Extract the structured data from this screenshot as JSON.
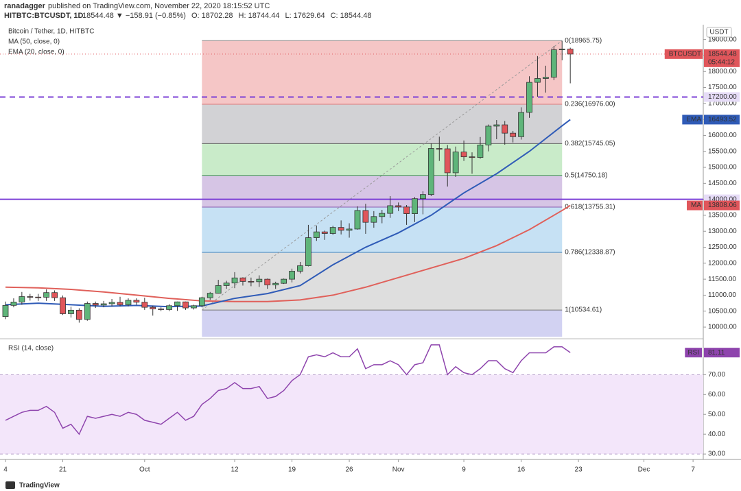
{
  "header": {
    "author": "ranadagger",
    "published": "published on TradingView.com, November 22, 2020 18:15:52 UTC",
    "symbol": "HITBTC:BTCUSDT, 1D",
    "quote": [
      "18544.48 ▼ −158.91 (−0.85%)",
      "O: 18702.28",
      "H: 18744.44",
      "L: 17629.64",
      "C: 18544.48"
    ]
  },
  "footer": {
    "brand": "TradingView"
  },
  "chart_data": [
    {
      "type": "candlestick",
      "title": "Bitcoin / Tether, 1D, HITBTC",
      "legend": [
        "MA (50, close, 0)",
        "EMA (20, close, 0)"
      ],
      "currency": "USDT",
      "up_color": "#5fb57a",
      "down_color": "#e0565b",
      "open": [
        10330,
        10680,
        10785,
        10955,
        10940,
        10935,
        11080,
        10920,
        10420,
        10530,
        10240,
        10740,
        10690,
        10730,
        10775,
        10700,
        10840,
        10780,
        10620,
        10570,
        10550,
        10670,
        10790,
        10600,
        10670,
        10920,
        11060,
        11300,
        11380,
        11540,
        11430,
        11420,
        11500,
        11320,
        11370,
        11500,
        11750,
        11920,
        12800,
        12980,
        12930,
        13120,
        13030,
        13070,
        13650,
        13280,
        13460,
        13560,
        13800,
        13760,
        13550,
        14020,
        14150,
        15590,
        15580,
        14830,
        15480,
        15330,
        15310,
        15700,
        16290,
        16330,
        16070,
        15960,
        16720,
        17660,
        17780,
        17820,
        18680,
        18702.28
      ],
      "high": [
        10800,
        10900,
        11100,
        11040,
        11040,
        11180,
        11150,
        10990,
        10640,
        10590,
        10800,
        10800,
        10820,
        10880,
        10950,
        10900,
        10900,
        10920,
        10670,
        10620,
        10720,
        10800,
        10800,
        10700,
        10950,
        11100,
        11480,
        11450,
        11720,
        11560,
        11550,
        11620,
        11520,
        11420,
        11520,
        11830,
        12040,
        13200,
        13180,
        13020,
        13170,
        13340,
        13250,
        13780,
        13860,
        13630,
        13670,
        14100,
        13900,
        13820,
        14070,
        14250,
        15750,
        15960,
        15700,
        15650,
        15840,
        15470,
        15950,
        16340,
        16480,
        16450,
        16140,
        16880,
        17850,
        18480,
        18180,
        18800,
        18960,
        18744.44
      ],
      "low": [
        10250,
        10620,
        10700,
        10830,
        10820,
        10820,
        10820,
        10380,
        10300,
        10140,
        10200,
        10600,
        10620,
        10650,
        10650,
        10650,
        10700,
        10540,
        10360,
        10500,
        10500,
        10510,
        10540,
        10550,
        10620,
        10850,
        11050,
        11200,
        11220,
        11300,
        11280,
        11260,
        11200,
        11200,
        11350,
        11400,
        11680,
        11900,
        12700,
        12730,
        12890,
        12900,
        12800,
        13050,
        12920,
        13110,
        13250,
        13420,
        13630,
        13200,
        13290,
        13530,
        14100,
        15200,
        14400,
        14700,
        15200,
        14800,
        15270,
        15500,
        15880,
        15710,
        15780,
        15870,
        16550,
        17210,
        17340,
        17730,
        18350,
        17629.64
      ],
      "close": [
        10680,
        10785,
        10955,
        10940,
        10935,
        11080,
        10920,
        10420,
        10530,
        10240,
        10740,
        10690,
        10730,
        10775,
        10700,
        10840,
        10780,
        10620,
        10570,
        10550,
        10670,
        10790,
        10600,
        10670,
        10920,
        11060,
        11300,
        11380,
        11540,
        11430,
        11420,
        11500,
        11320,
        11370,
        11500,
        11750,
        11920,
        12800,
        12980,
        12930,
        13120,
        13030,
        13070,
        13650,
        13280,
        13460,
        13560,
        13800,
        13760,
        13550,
        14020,
        14150,
        15590,
        15580,
        14830,
        15480,
        15330,
        15310,
        15700,
        16290,
        16330,
        16070,
        15960,
        16720,
        17660,
        17780,
        17820,
        18680,
        18700,
        18544.48
      ],
      "lines": [
        {
          "name": "MA",
          "color": "#e0605a",
          "x": [
            0,
            4,
            8,
            12,
            16,
            20,
            24,
            28,
            32,
            36,
            40,
            44,
            48,
            52,
            56,
            60,
            64,
            68,
            69
          ],
          "values": [
            11250,
            11230,
            11180,
            11100,
            11000,
            10900,
            10820,
            10800,
            10800,
            10850,
            11000,
            11250,
            11550,
            11850,
            12150,
            12550,
            13050,
            13650,
            13808.06
          ]
        },
        {
          "name": "EMA",
          "color": "#2f5bb7",
          "x": [
            0,
            4,
            8,
            12,
            16,
            20,
            24,
            28,
            32,
            36,
            40,
            44,
            48,
            52,
            56,
            60,
            64,
            68,
            69
          ],
          "values": [
            10700,
            10750,
            10700,
            10650,
            10680,
            10640,
            10660,
            10900,
            11050,
            11300,
            11950,
            12500,
            12950,
            13500,
            14200,
            14800,
            15500,
            16300,
            16493.52
          ]
        }
      ],
      "price_labels": [
        {
          "name": "BTCUSDT",
          "value": 18544.48,
          "color": "#e0565b",
          "sub": "05:44:12"
        },
        {
          "name": "EMA",
          "value": 16493.52,
          "color": "#2f5bb7"
        },
        {
          "name": "MA",
          "value": 13808.06,
          "color": "#e0565b"
        }
      ],
      "levels": [
        {
          "value": 17200,
          "label": "17200.00",
          "style": "dashed",
          "color": "#7b3fd6"
        },
        {
          "value": 14000,
          "label": "14000.00",
          "style": "solid",
          "color": "#7b3fd6"
        }
      ],
      "fib": {
        "x_range": [
          24,
          68
        ],
        "levels": [
          {
            "value": 18965.75,
            "label": "0(18965.75)",
            "color": "#888888",
            "band": "#f3bcbc"
          },
          {
            "value": 16976,
            "label": "0.236(16976.00)",
            "color": "#e07a7a",
            "band": "#cacace"
          },
          {
            "value": 15745.05,
            "label": "0.382(15745.05)",
            "color": "#666666",
            "band": "#bfe8bf"
          },
          {
            "value": 14750.18,
            "label": "0.5(14750.18)",
            "color": "#3a9a4a",
            "band": "#cfbbe0"
          },
          {
            "value": 13755.31,
            "label": "0.618(13755.31)",
            "color": "#8a5ab0",
            "band": "#bcdcf2"
          },
          {
            "value": 12338.87,
            "label": "0.786(12338.87)",
            "color": "#3a82c0",
            "band": "#d8d8d8"
          },
          {
            "value": 10534.61,
            "label": "1(10534.61)",
            "color": "#777777",
            "band": "#cacaf0"
          }
        ]
      },
      "ylim": [
        9700,
        19400
      ],
      "yticks": [
        {
          "value": 10000,
          "label": "10000.00"
        },
        {
          "value": 10500,
          "label": "10500.00"
        },
        {
          "value": 11000,
          "label": "11000.00"
        },
        {
          "value": 11500,
          "label": "11500.00"
        },
        {
          "value": 12000,
          "label": "12000.00"
        },
        {
          "value": 12500,
          "label": "12500.00"
        },
        {
          "value": 13000,
          "label": "13000.00"
        },
        {
          "value": 13500,
          "label": "13500.00"
        },
        {
          "value": 14000,
          "label": "14000.00"
        },
        {
          "value": 14500,
          "label": "14500.00"
        },
        {
          "value": 15000,
          "label": "15000.00"
        },
        {
          "value": 15500,
          "label": "15500.00"
        },
        {
          "value": 16000,
          "label": "16000.00"
        },
        {
          "value": 16500,
          "label": "16500.00"
        },
        {
          "value": 17000,
          "label": "17000.00"
        },
        {
          "value": 17500,
          "label": "17500.00"
        },
        {
          "value": 18000,
          "label": "18000.00"
        },
        {
          "value": 18500,
          "label": "18500.00"
        },
        {
          "value": 19000,
          "label": "19000.00"
        }
      ],
      "xticks": [
        {
          "value": 0,
          "label": "4"
        },
        {
          "value": 7,
          "label": "21"
        },
        {
          "value": 17,
          "label": "Oct"
        },
        {
          "value": 28,
          "label": "12"
        },
        {
          "value": 35,
          "label": "19"
        },
        {
          "value": 42,
          "label": "26"
        },
        {
          "value": 48,
          "label": "Nov"
        },
        {
          "value": 56,
          "label": "9"
        },
        {
          "value": 63,
          "label": "16"
        },
        {
          "value": 70,
          "label": "23"
        },
        {
          "value": 78,
          "label": "Dec"
        },
        {
          "value": 84,
          "label": "7"
        }
      ]
    },
    {
      "type": "line",
      "title": "RSI (14, close)",
      "name": "RSI",
      "color": "#8e44ad",
      "band_color": "#f3e6fa",
      "values": [
        47,
        49,
        51,
        52,
        52,
        54,
        51,
        43,
        45,
        40,
        49,
        48,
        49,
        50,
        49,
        51,
        50,
        47,
        46,
        45,
        48,
        51,
        47,
        49,
        55,
        58,
        62,
        63,
        66,
        63,
        63,
        64,
        58,
        59,
        62,
        67,
        70,
        79,
        80,
        79,
        81,
        79,
        79,
        83,
        73,
        75,
        75,
        77,
        75,
        70,
        75,
        76,
        85,
        85,
        70,
        74,
        71,
        70,
        73,
        77,
        77,
        73,
        71,
        77,
        81,
        81,
        81,
        84,
        84,
        81.11
      ],
      "value_labels": {
        "69": "81.11"
      },
      "ylim": [
        29,
        86
      ],
      "band": [
        30,
        70
      ],
      "yticks": [
        {
          "value": 30,
          "label": "30.00"
        },
        {
          "value": 40,
          "label": "40.00"
        },
        {
          "value": 50,
          "label": "50.00"
        },
        {
          "value": 60,
          "label": "60.00"
        },
        {
          "value": 70,
          "label": "70.00"
        }
      ]
    }
  ]
}
